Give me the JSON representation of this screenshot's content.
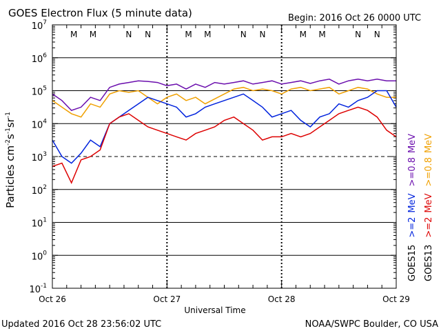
{
  "chart_data": {
    "type": "line",
    "title": "GOES Electron Flux (5 minute data)",
    "begin_label": "Begin: 2016 Oct 26 0000 UTC",
    "xlabel": "Universal Time",
    "ylabel": "Particles cm-2s-1sr-1",
    "ylabel_parts": {
      "base": "Particles cm",
      "e1": "-2",
      "mid": "s",
      "e2": "-1",
      "mid2": "sr",
      "e3": "-1"
    },
    "x_ticks": [
      "Oct 26",
      "Oct 27",
      "Oct 28",
      "Oct 29"
    ],
    "xlim_hours": [
      0,
      72
    ],
    "ylim_log10": [
      -1,
      7
    ],
    "y_ticks": [
      {
        "exp": 7,
        "base": "10",
        "sup": "7"
      },
      {
        "exp": 6,
        "base": "10",
        "sup": "6"
      },
      {
        "exp": 5,
        "base": "10",
        "sup": "5"
      },
      {
        "exp": 4,
        "base": "10",
        "sup": "4"
      },
      {
        "exp": 3,
        "base": "10",
        "sup": "3"
      },
      {
        "exp": 2,
        "base": "10",
        "sup": "2"
      },
      {
        "exp": 1,
        "base": "10",
        "sup": "1"
      },
      {
        "exp": 0,
        "base": "10",
        "sup": "0"
      },
      {
        "exp": -1,
        "base": "10",
        "sup": "-1"
      }
    ],
    "threshold_log10": 3,
    "markers": [
      {
        "label": "M",
        "hour": 4.5,
        "color": "#dd0000"
      },
      {
        "label": "M",
        "hour": 8.5,
        "color": "#0000dd"
      },
      {
        "label": "N",
        "hour": 16.0,
        "color": "#dd0000"
      },
      {
        "label": "N",
        "hour": 20.0,
        "color": "#0000dd"
      },
      {
        "label": "M",
        "hour": 28.5,
        "color": "#dd0000"
      },
      {
        "label": "M",
        "hour": 32.5,
        "color": "#0000dd"
      },
      {
        "label": "N",
        "hour": 40.0,
        "color": "#dd0000"
      },
      {
        "label": "N",
        "hour": 44.0,
        "color": "#0000dd"
      },
      {
        "label": "M",
        "hour": 52.5,
        "color": "#dd0000"
      },
      {
        "label": "M",
        "hour": 56.5,
        "color": "#0000dd"
      },
      {
        "label": "N",
        "hour": 64.0,
        "color": "#dd0000"
      },
      {
        "label": "N",
        "hour": 68.0,
        "color": "#0000dd"
      }
    ],
    "series": [
      {
        "name": "GOES15 >=0.8 MeV",
        "color": "#6a0dad",
        "x": [
          0,
          2,
          4,
          6,
          8,
          10,
          12,
          14,
          16,
          18,
          20,
          22,
          24,
          26,
          28,
          30,
          32,
          34,
          36,
          38,
          40,
          42,
          44,
          46,
          48,
          50,
          52,
          54,
          56,
          58,
          60,
          62,
          64,
          66,
          68,
          70,
          72
        ],
        "y": [
          4.9,
          4.7,
          4.4,
          4.5,
          4.8,
          4.7,
          5.1,
          5.2,
          5.25,
          5.3,
          5.28,
          5.25,
          5.15,
          5.2,
          5.05,
          5.2,
          5.1,
          5.25,
          5.2,
          5.25,
          5.3,
          5.2,
          5.25,
          5.3,
          5.2,
          5.25,
          5.3,
          5.22,
          5.3,
          5.35,
          5.2,
          5.3,
          5.35,
          5.3,
          5.35,
          5.3,
          5.3
        ]
      },
      {
        "name": "GOES13 >=0.8 MeV",
        "color": "#f0a000",
        "x": [
          0,
          2,
          4,
          6,
          8,
          10,
          12,
          14,
          16,
          18,
          20,
          22,
          24,
          26,
          28,
          30,
          32,
          34,
          36,
          38,
          40,
          42,
          44,
          46,
          48,
          50,
          52,
          54,
          56,
          58,
          60,
          62,
          64,
          66,
          68,
          70,
          72
        ],
        "y": [
          4.7,
          4.5,
          4.3,
          4.2,
          4.6,
          4.5,
          4.9,
          5.0,
          4.95,
          5.0,
          4.8,
          4.6,
          4.8,
          4.9,
          4.7,
          4.8,
          4.6,
          4.75,
          4.9,
          5.05,
          5.1,
          5.0,
          5.05,
          5.0,
          4.9,
          5.05,
          5.1,
          5.0,
          5.05,
          5.1,
          4.9,
          5.0,
          5.1,
          5.05,
          4.9,
          4.8,
          4.8
        ]
      },
      {
        "name": "GOES15 >=2 MeV",
        "color": "#0022dd",
        "x": [
          0,
          2,
          4,
          6,
          8,
          10,
          12,
          14,
          16,
          18,
          20,
          22,
          24,
          26,
          28,
          30,
          32,
          34,
          36,
          38,
          40,
          42,
          44,
          46,
          48,
          50,
          52,
          54,
          56,
          58,
          60,
          62,
          64,
          66,
          68,
          70,
          72
        ],
        "y": [
          3.5,
          3.0,
          2.8,
          3.1,
          3.5,
          3.3,
          4.0,
          4.2,
          4.4,
          4.6,
          4.8,
          4.7,
          4.6,
          4.5,
          4.2,
          4.3,
          4.5,
          4.6,
          4.7,
          4.8,
          4.9,
          4.7,
          4.5,
          4.2,
          4.3,
          4.4,
          4.1,
          3.9,
          4.2,
          4.3,
          4.6,
          4.5,
          4.7,
          4.8,
          5.0,
          5.0,
          4.5
        ]
      },
      {
        "name": "GOES13 >=2 MeV",
        "color": "#dd0000",
        "x": [
          0,
          2,
          4,
          6,
          8,
          10,
          12,
          14,
          16,
          18,
          20,
          22,
          24,
          26,
          28,
          30,
          32,
          34,
          36,
          38,
          40,
          42,
          44,
          46,
          48,
          50,
          52,
          54,
          56,
          58,
          60,
          62,
          64,
          66,
          68,
          70,
          72
        ],
        "y": [
          2.7,
          2.8,
          2.2,
          2.9,
          3.0,
          3.2,
          4.0,
          4.2,
          4.3,
          4.1,
          3.9,
          3.8,
          3.7,
          3.6,
          3.5,
          3.7,
          3.8,
          3.9,
          4.1,
          4.2,
          4.0,
          3.8,
          3.5,
          3.6,
          3.6,
          3.7,
          3.6,
          3.7,
          3.9,
          4.1,
          4.3,
          4.4,
          4.5,
          4.4,
          4.2,
          3.8,
          3.6
        ]
      }
    ],
    "legend": {
      "goes15": {
        "label": "GOES15",
        "e2": ">=2",
        "e08": ">=0.8",
        "unit": "MeV"
      },
      "goes13": {
        "label": "GOES13",
        "e2": ">=2",
        "e08": ">=0.8",
        "unit": "MeV"
      }
    }
  },
  "footer": {
    "updated": "Updated 2016 Oct 28 23:56:02 UTC",
    "credit": "NOAA/SWPC Boulder, CO USA"
  }
}
